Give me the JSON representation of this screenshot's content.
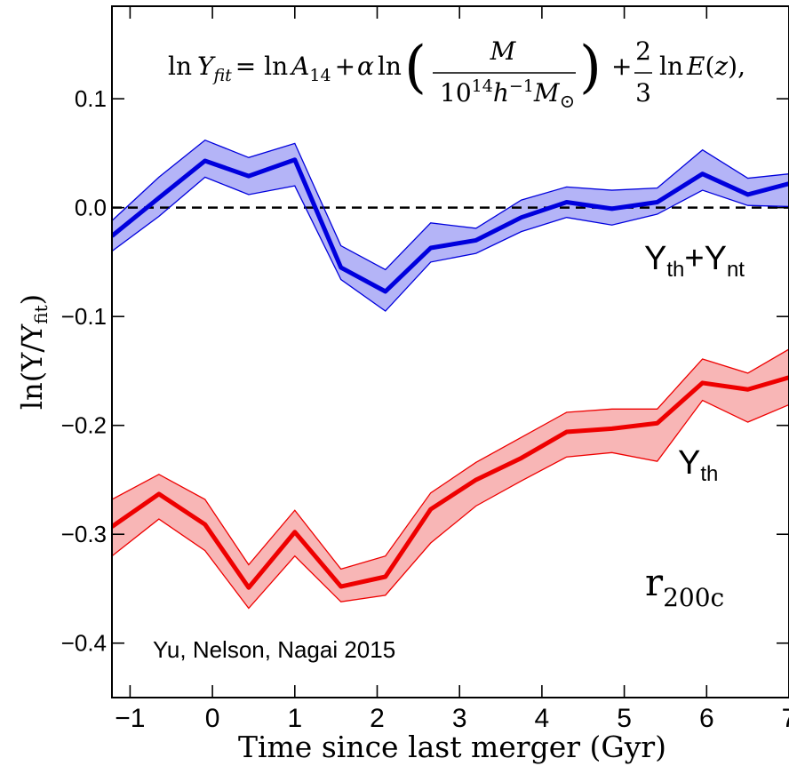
{
  "chart_data": {
    "type": "line",
    "title": "",
    "xlabel": "Time since last merger (Gyr)",
    "ylabel": {
      "main": "ln(Y/Y",
      "sub": "fit",
      "close": ")"
    },
    "xlim": [
      -1.22,
      7.0
    ],
    "ylim": [
      -0.45,
      0.185
    ],
    "xticks": [
      -1,
      0,
      1,
      2,
      3,
      4,
      5,
      6,
      7
    ],
    "xtick_labels": [
      "−1",
      "0",
      "1",
      "2",
      "3",
      "4",
      "5",
      "6",
      "7"
    ],
    "yticks": [
      -0.4,
      -0.3,
      -0.2,
      -0.1,
      0.0,
      0.1
    ],
    "ytick_labels": [
      "−0.4",
      "−0.3",
      "−0.2",
      "−0.1",
      "0.0",
      "0.1"
    ],
    "grid": false,
    "reference_line": {
      "y": 0.0,
      "style": "dashed",
      "color": "#000000"
    },
    "series": [
      {
        "name": "Yth+Ynt",
        "color": "#0000dd",
        "fill": "#b4b4f7",
        "x": [
          -1.22,
          -0.65,
          -0.09,
          0.44,
          1.0,
          1.56,
          2.1,
          2.65,
          3.2,
          3.75,
          4.3,
          4.85,
          5.4,
          5.95,
          6.5,
          7.0
        ],
        "y": [
          -0.026,
          0.009,
          0.043,
          0.029,
          0.044,
          -0.055,
          -0.077,
          -0.037,
          -0.03,
          -0.009,
          0.005,
          -0.001,
          0.005,
          0.031,
          0.012,
          0.022
        ],
        "upper": [
          -0.012,
          0.028,
          0.062,
          0.046,
          0.059,
          -0.035,
          -0.057,
          -0.014,
          -0.019,
          0.007,
          0.019,
          0.016,
          0.018,
          0.053,
          0.027,
          0.031
        ],
        "lower": [
          -0.04,
          -0.008,
          0.028,
          0.012,
          0.02,
          -0.066,
          -0.095,
          -0.05,
          -0.042,
          -0.022,
          -0.009,
          -0.016,
          -0.006,
          0.016,
          0.002,
          0.001
        ]
      },
      {
        "name": "Yth",
        "color": "#ee0000",
        "fill": "#f8b6b6",
        "x": [
          -1.22,
          -0.65,
          -0.09,
          0.44,
          1.0,
          1.56,
          2.1,
          2.65,
          3.2,
          3.75,
          4.3,
          4.85,
          5.4,
          5.95,
          6.5,
          7.0
        ],
        "y": [
          -0.293,
          -0.263,
          -0.291,
          -0.349,
          -0.298,
          -0.348,
          -0.339,
          -0.277,
          -0.25,
          -0.23,
          -0.206,
          -0.203,
          -0.198,
          -0.161,
          -0.167,
          -0.156
        ],
        "upper": [
          -0.268,
          -0.245,
          -0.268,
          -0.328,
          -0.278,
          -0.332,
          -0.32,
          -0.262,
          -0.234,
          -0.211,
          -0.188,
          -0.185,
          -0.185,
          -0.139,
          -0.152,
          -0.13
        ],
        "lower": [
          -0.32,
          -0.286,
          -0.315,
          -0.368,
          -0.32,
          -0.362,
          -0.356,
          -0.308,
          -0.274,
          -0.251,
          -0.229,
          -0.225,
          -0.233,
          -0.177,
          -0.197,
          -0.181
        ]
      }
    ],
    "series_labels": {
      "blue": {
        "Y1": "Y",
        "s1": "th",
        "plus": "+",
        "Y2": "Y",
        "s2": "nt"
      },
      "red": {
        "Y": "Y",
        "s": "th"
      }
    },
    "annotations": {
      "formula": "ln Y_fit = ln A_14 + α ln ( M / 10^14 h^-1 M_⊙ ) + 2/3 ln E(z),",
      "radius": {
        "main": "r",
        "sub": "200c"
      },
      "credit": "Yu, Nelson, Nagai 2015"
    }
  }
}
